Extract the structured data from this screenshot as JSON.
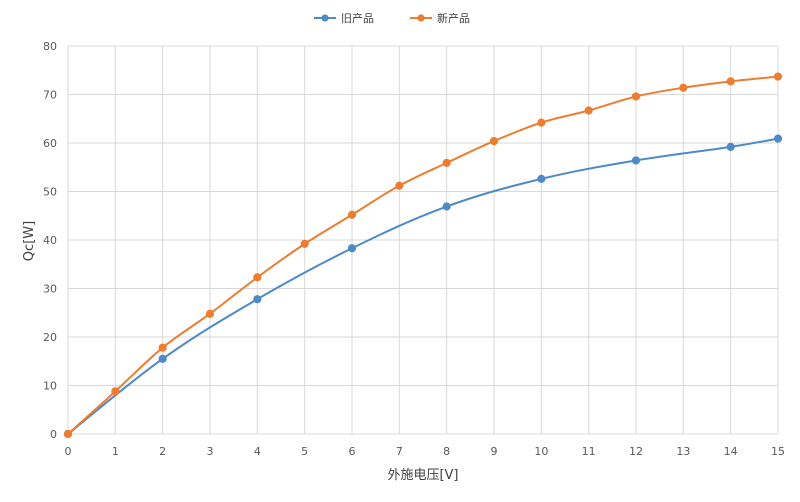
{
  "chart_data": {
    "type": "line",
    "title": "",
    "xlabel": "外施电压[V]",
    "ylabel": "Qc[W]",
    "xlim": [
      0,
      15
    ],
    "ylim": [
      0,
      80
    ],
    "x_ticks": [
      0,
      1,
      2,
      3,
      4,
      5,
      6,
      7,
      8,
      9,
      10,
      11,
      12,
      13,
      14,
      15
    ],
    "y_ticks": [
      0,
      10,
      20,
      30,
      40,
      50,
      60,
      70,
      80
    ],
    "grid": true,
    "legend_position": "top-center",
    "series": [
      {
        "name": "旧产品",
        "color": "#4e8ac8",
        "smooth": true,
        "x": [
          0,
          2,
          4,
          6,
          8,
          10,
          12,
          14,
          15
        ],
        "values": [
          0,
          15.5,
          27.8,
          38.3,
          46.9,
          52.6,
          56.4,
          59.2,
          60.9
        ]
      },
      {
        "name": "新产品",
        "color": "#ed7d31",
        "smooth": true,
        "x": [
          0,
          1,
          2,
          3,
          4,
          5,
          6,
          7,
          8,
          9,
          10,
          11,
          12,
          13,
          14,
          15
        ],
        "values": [
          0,
          8.8,
          17.8,
          24.8,
          32.3,
          39.2,
          45.2,
          51.2,
          55.9,
          60.4,
          64.2,
          66.7,
          69.6,
          71.4,
          72.7,
          73.7
        ]
      }
    ]
  }
}
